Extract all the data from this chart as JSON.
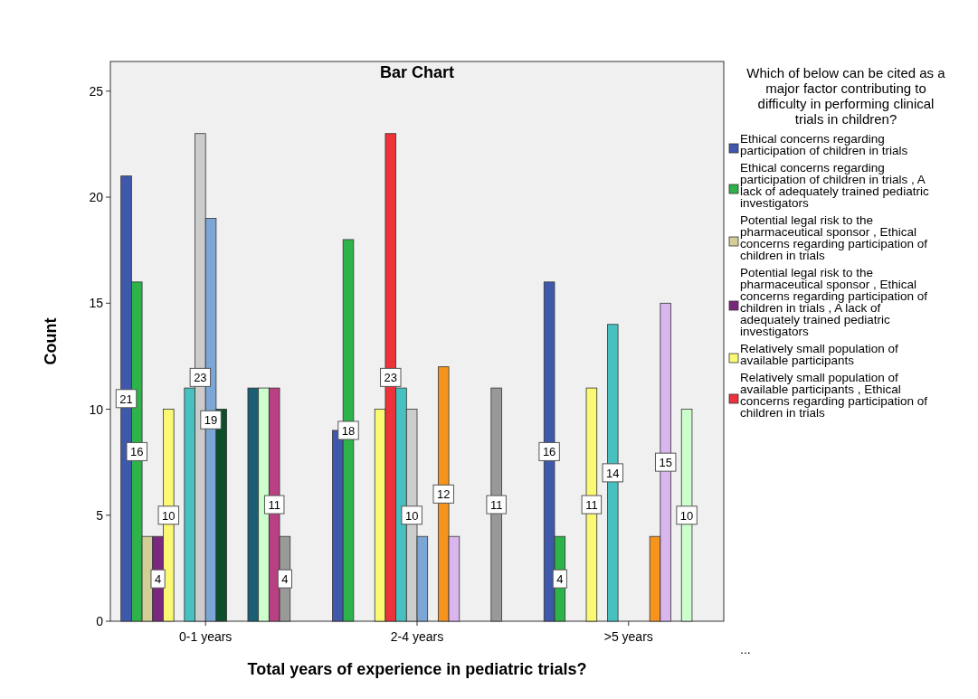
{
  "chart_data": {
    "type": "bar",
    "title": "Bar Chart",
    "xlabel": "Total years of experience in pediatric trials?",
    "ylabel": "Count",
    "legend_title": "Which of below can be cited as a major factor contributing to difficulty in performing clinical trials in children?",
    "categories": [
      "0-1 years",
      "2-4 years",
      ">5 years"
    ],
    "ylim": [
      0,
      26.4
    ],
    "yticks": [
      0,
      5,
      10,
      15,
      20,
      25
    ],
    "grid": false,
    "legend": "right",
    "annotations": [
      "..."
    ],
    "series": [
      {
        "name": "Ethical concerns regarding participation of children in trials",
        "color": "#3e58ac",
        "values": [
          21,
          9,
          16
        ],
        "value_labels": [
          "21",
          null,
          "16"
        ]
      },
      {
        "name": "Ethical concerns regarding participation of children in trials  , A lack of adequately trained pediatric investigators",
        "color": "#2db34a",
        "values": [
          16,
          18,
          4
        ],
        "value_labels": [
          "16",
          "18",
          "4"
        ]
      },
      {
        "name": "Potential legal risk to the pharmaceutical sponsor , Ethical concerns regarding participation of children in trials",
        "color": "#d3ce97",
        "values": [
          4,
          null,
          null
        ],
        "value_labels": [
          null,
          null,
          null
        ]
      },
      {
        "name": "Potential legal risk to the pharmaceutical sponsor , Ethical concerns regarding participation of children in trials  , A lack of adequately trained pediatric investigators",
        "color": "#79287e",
        "values": [
          4,
          null,
          null
        ],
        "value_labels": [
          "4",
          null,
          null
        ]
      },
      {
        "name": "Relatively small population of available participants",
        "color": "#fbf873",
        "values": [
          10,
          10,
          11
        ],
        "value_labels": [
          "10",
          null,
          "11"
        ]
      },
      {
        "name": "Relatively small population of available participants , Ethical concerns regarding participation of children in trials",
        "color": "#ee3239",
        "values": [
          null,
          23,
          null
        ],
        "value_labels": [
          null,
          "23",
          null
        ]
      },
      {
        "color": "#48c0c0",
        "values": [
          11,
          11,
          14
        ],
        "value_labels": [
          null,
          null,
          "14"
        ]
      },
      {
        "color": "#cccccc",
        "values": [
          23,
          10,
          null
        ],
        "value_labels": [
          "23",
          "10",
          null
        ]
      },
      {
        "color": "#7ba6d6",
        "values": [
          19,
          4,
          null
        ],
        "value_labels": [
          "19",
          null,
          null
        ]
      },
      {
        "color": "#0b5029",
        "values": [
          10,
          null,
          null
        ],
        "value_labels": [
          null,
          null,
          null
        ]
      },
      {
        "color": "#f7941d",
        "values": [
          null,
          12,
          4
        ],
        "value_labels": [
          null,
          "12",
          null
        ]
      },
      {
        "color": "#dab6ee",
        "values": [
          null,
          4,
          15
        ],
        "value_labels": [
          null,
          null,
          "15"
        ]
      },
      {
        "color": "#1b5e74",
        "values": [
          11,
          null,
          null
        ],
        "value_labels": [
          null,
          null,
          null
        ]
      },
      {
        "color": "#ccffcc",
        "values": [
          11,
          null,
          10
        ],
        "value_labels": [
          null,
          null,
          "10"
        ]
      },
      {
        "color": "#b94082",
        "values": [
          11,
          null,
          null
        ],
        "value_labels": [
          "11",
          null,
          null
        ]
      },
      {
        "color": "#999999",
        "values": [
          4,
          11,
          null
        ],
        "value_labels": [
          "4",
          "11",
          null
        ]
      }
    ]
  }
}
